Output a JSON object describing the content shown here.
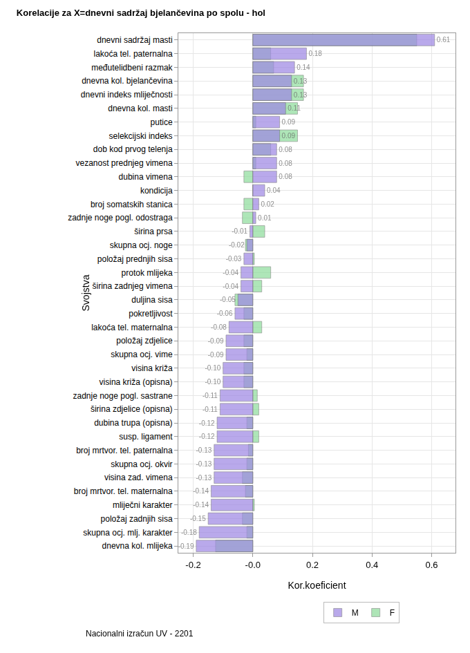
{
  "chart_data": {
    "type": "bar",
    "title": "Korelacije za X=dnevni sadržaj bjelančevina po spolu - hol",
    "x_label": "Kor.koeficient",
    "y_label": "Svojstva",
    "footer": "Nacionalni izračun UV - 2201",
    "orientation": "horizontal",
    "grid": true,
    "legend": "bottom",
    "categories": [
      "dnevni sadržaj masti",
      "lakoća tel. paternalna",
      "međutelidbeni razmak",
      "dnevna kol. bjelančevina",
      "dnevni indeks mliječnosti",
      "dnevna kol. masti",
      "putice",
      "selekcijski indeks",
      "dob kod prvog telenja",
      "vezanost prednjeg vimena",
      "dubina vimena",
      "kondicija",
      "broj somatskih stanica",
      "zadnje noge pogl. odostraga",
      "širina prsa",
      "skupna ocj. noge",
      "položaj prednjih sisa",
      "protok mlijeka",
      "širina zadnjeg vimena",
      "duljina sisa",
      "pokretljivost",
      "lakoća tel. maternalna",
      "položaj zdjelice",
      "skupna ocj. vime",
      "visina križa",
      "visina križa (opisna)",
      "zadnje noge pogl. sastrane",
      "širina zdjelice (opisna)",
      "dubina trupa (opisna)",
      "susp. ligament",
      "broj mrtvor. tel. paternalna",
      "skupna ocj. okvir",
      "visina zad. vimena",
      "broj mrtvor. tel. maternalna",
      "mliječni karakter",
      "položaj zadnjih sisa",
      "skupna ocj. mlj. karakter",
      "dnevna kol. mlijeka"
    ],
    "series": [
      {
        "name": "M",
        "color": "#9f88e3",
        "data_labels": true,
        "values": [
          0.61,
          0.18,
          0.14,
          0.13,
          0.13,
          0.11,
          0.09,
          0.09,
          0.08,
          0.08,
          0.08,
          0.04,
          0.02,
          0.01,
          -0.01,
          -0.02,
          -0.03,
          -0.04,
          -0.04,
          -0.05,
          -0.06,
          -0.08,
          -0.09,
          -0.09,
          -0.1,
          -0.1,
          -0.11,
          -0.11,
          -0.12,
          -0.12,
          -0.13,
          -0.13,
          -0.13,
          -0.14,
          -0.14,
          -0.15,
          -0.18,
          -0.19
        ],
        "value_labels": [
          "0.61",
          "0.18",
          "0.14",
          "0.13",
          "0.13",
          "0.11",
          "0.09",
          "0.09",
          "0.08",
          "0.08",
          "0.08",
          "0.04",
          "0.02",
          "0.01",
          "-0.01",
          "-0.02",
          "-0.03",
          "-0.04",
          "-0.04",
          "-0.05",
          "-0.06",
          "-0.08",
          "-0.09",
          "-0.09",
          "-0.10",
          "-0.10",
          "-0.11",
          "-0.11",
          "-0.12",
          "-0.12",
          "-0.13",
          "-0.13",
          "-0.13",
          "-0.14",
          "-0.14",
          "-0.15",
          "-0.18",
          "-0.19"
        ]
      },
      {
        "name": "F",
        "color": "#8fdc9c",
        "values": [
          0.55,
          0.06,
          0.07,
          0.17,
          0.17,
          0.15,
          0.01,
          0.15,
          0.06,
          0.01,
          -0.03,
          0.0,
          -0.03,
          -0.035,
          0.04,
          -0.025,
          0.005,
          0.06,
          0.03,
          -0.06,
          -0.03,
          0.03,
          -0.03,
          -0.02,
          -0.03,
          -0.03,
          0.015,
          0.02,
          -0.02,
          0.02,
          -0.015,
          -0.02,
          -0.035,
          -0.025,
          0.005,
          -0.035,
          -0.02,
          -0.125
        ]
      }
    ],
    "xlim": [
      -0.25,
      0.68
    ],
    "xticks": [
      -0.2,
      {
        "value": 0,
        "label": "-0.0"
      },
      0.2,
      0.4,
      0.6
    ]
  }
}
